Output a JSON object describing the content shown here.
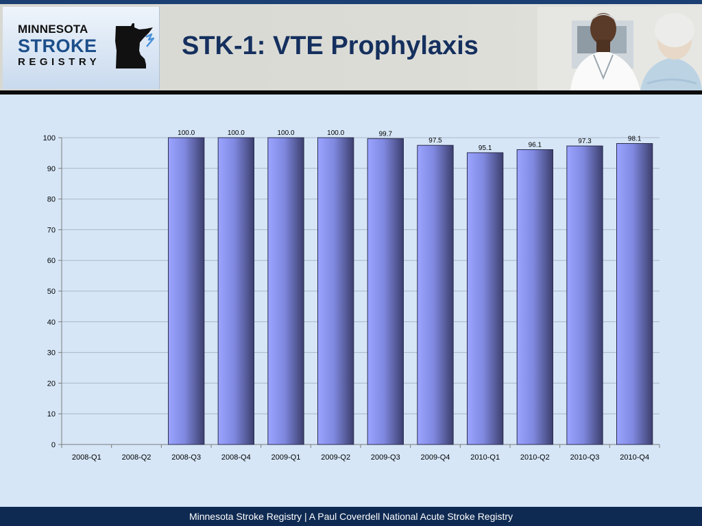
{
  "header": {
    "logo_line1": "MINNESOTA",
    "logo_line2": "STROKE",
    "logo_line3": "REGISTRY",
    "title": "STK-1: VTE Prophylaxis",
    "photo_icon": "doctor-and-patient-photo"
  },
  "footer": {
    "text": "Minnesota Stroke Registry | A Paul Coverdell National Acute Stroke Registry"
  },
  "colors": {
    "brand_navy": "#15305e",
    "bar_light": "#9ba4ff",
    "bar_dark": "#3c3f6e",
    "background": "#d6e6f7"
  },
  "chart_data": {
    "type": "bar",
    "categories": [
      "2008-Q1",
      "2008-Q2",
      "2008-Q3",
      "2008-Q4",
      "2009-Q1",
      "2009-Q2",
      "2009-Q3",
      "2009-Q4",
      "2010-Q1",
      "2010-Q2",
      "2010-Q3",
      "2010-Q4"
    ],
    "values": [
      null,
      null,
      100.0,
      100.0,
      100.0,
      100.0,
      99.7,
      97.5,
      95.1,
      96.1,
      97.3,
      98.1
    ],
    "data_labels": [
      "",
      "",
      "100.0",
      "100.0",
      "100.0",
      "100.0",
      "99.7",
      "97.5",
      "95.1",
      "96.1",
      "97.3",
      "98.1"
    ],
    "yticks": [
      0,
      10,
      20,
      30,
      40,
      50,
      60,
      70,
      80,
      90,
      100
    ],
    "ylim": [
      0,
      100
    ],
    "title": "",
    "xlabel": "",
    "ylabel": "",
    "grid": true,
    "legend": "none"
  }
}
